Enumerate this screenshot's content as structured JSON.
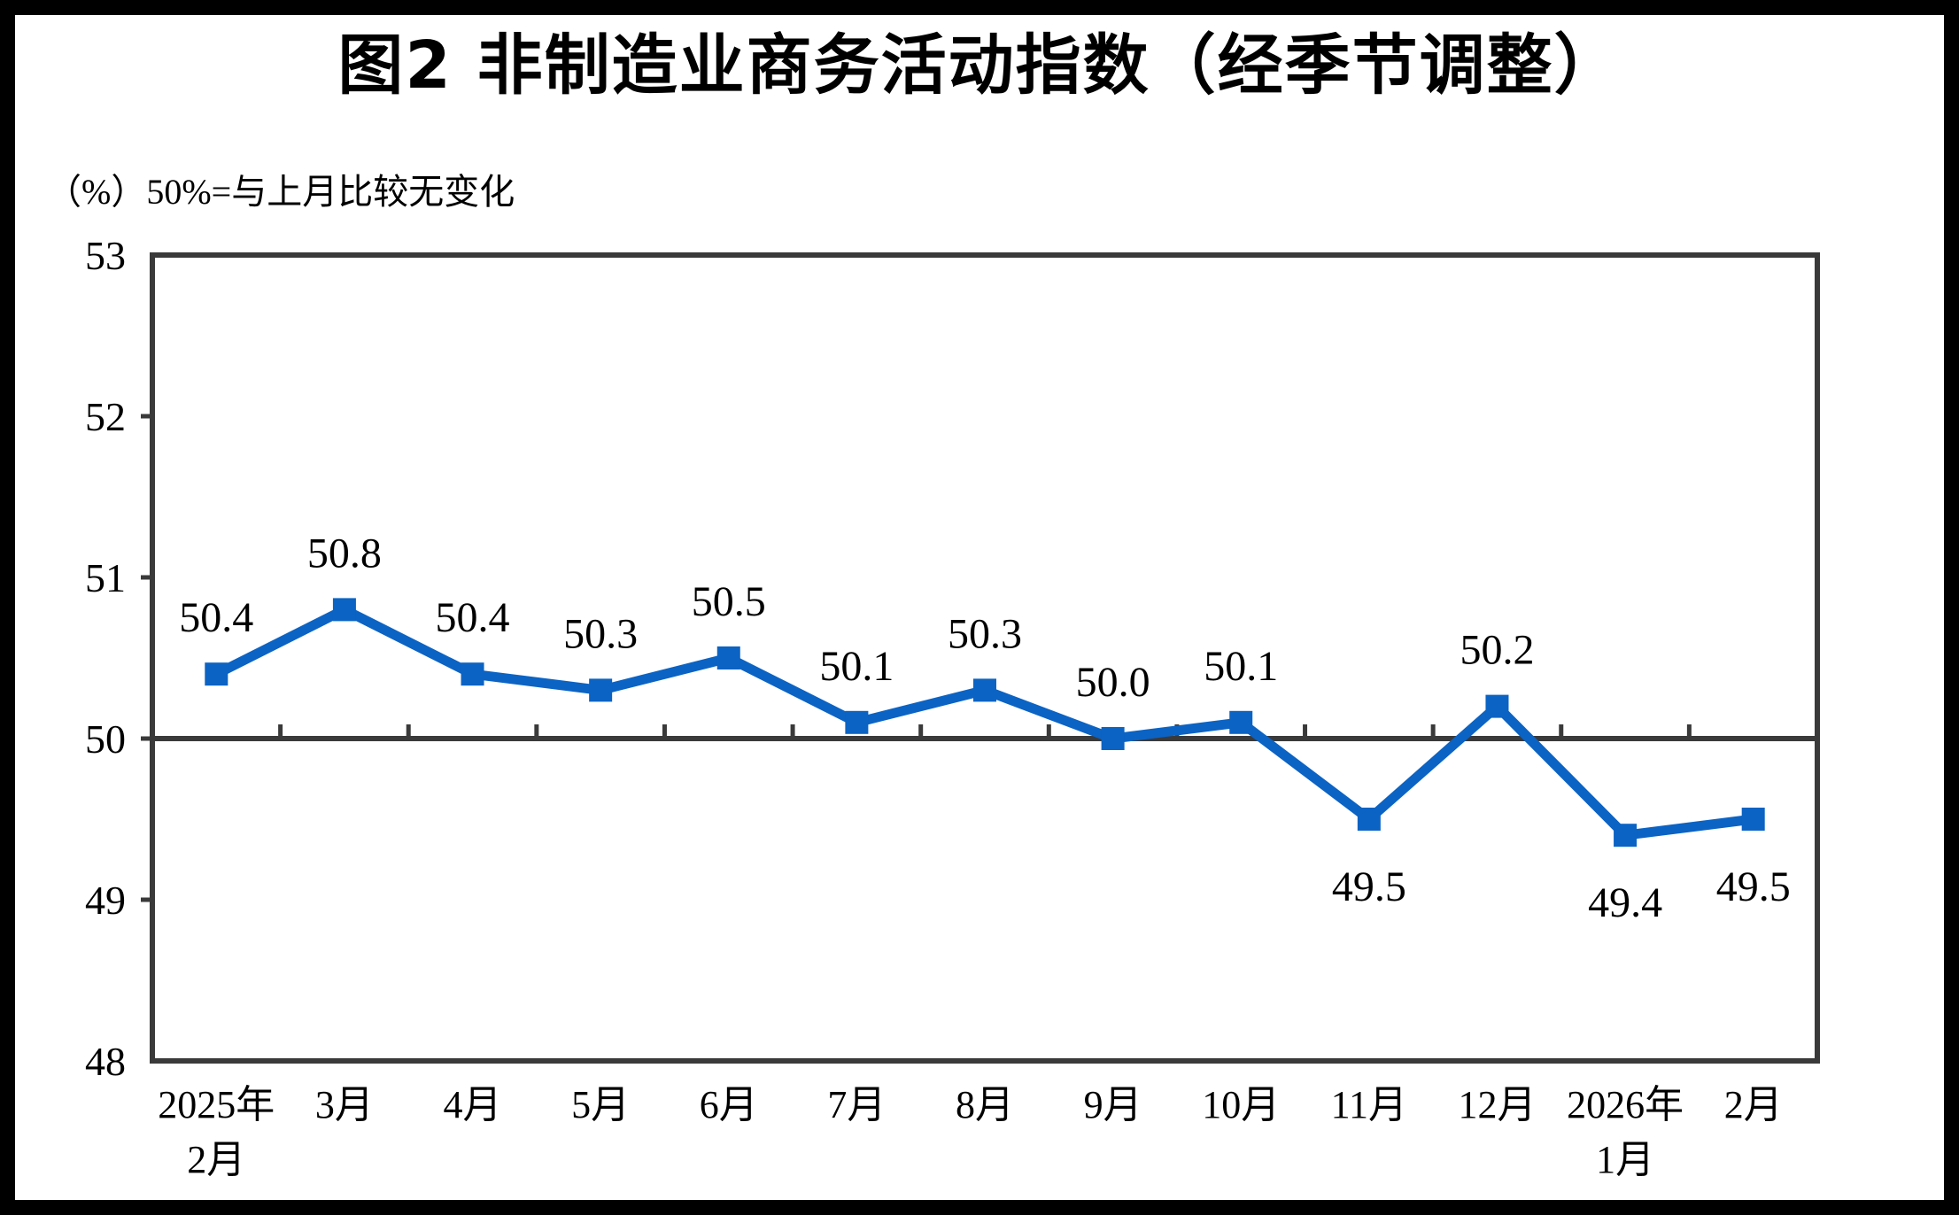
{
  "chart_data": {
    "type": "line",
    "title": "图2  非制造业商务活动指数（经季节调整）",
    "subtitle": "（%）50%=与上月比较无变化",
    "categories": [
      "2025年\n2月",
      "3月",
      "4月",
      "5月",
      "6月",
      "7月",
      "8月",
      "9月",
      "10月",
      "11月",
      "12月",
      "2026年\n1月",
      "2月"
    ],
    "series": [
      {
        "name": "非制造业商务活动指数（经季节调整）",
        "values": [
          50.4,
          50.8,
          50.4,
          50.3,
          50.5,
          50.1,
          50.3,
          50.0,
          50.1,
          49.5,
          50.2,
          49.4,
          49.5
        ]
      }
    ],
    "data_labels": [
      "50.4",
      "50.8",
      "50.4",
      "50.3",
      "50.5",
      "50.1",
      "50.3",
      "50.0",
      "50.1",
      "49.5",
      "50.2",
      "49.4",
      "49.5"
    ],
    "ylim": [
      48,
      53
    ],
    "yticks": [
      48,
      49,
      50,
      51,
      52,
      53
    ],
    "reference_line": 50,
    "xlabel": "",
    "ylabel": "",
    "grid": false,
    "legend": "none",
    "line_color": "#0B63C4",
    "axis_color": "#3A3A3A",
    "frame_color": "#000000",
    "marker": "square"
  }
}
